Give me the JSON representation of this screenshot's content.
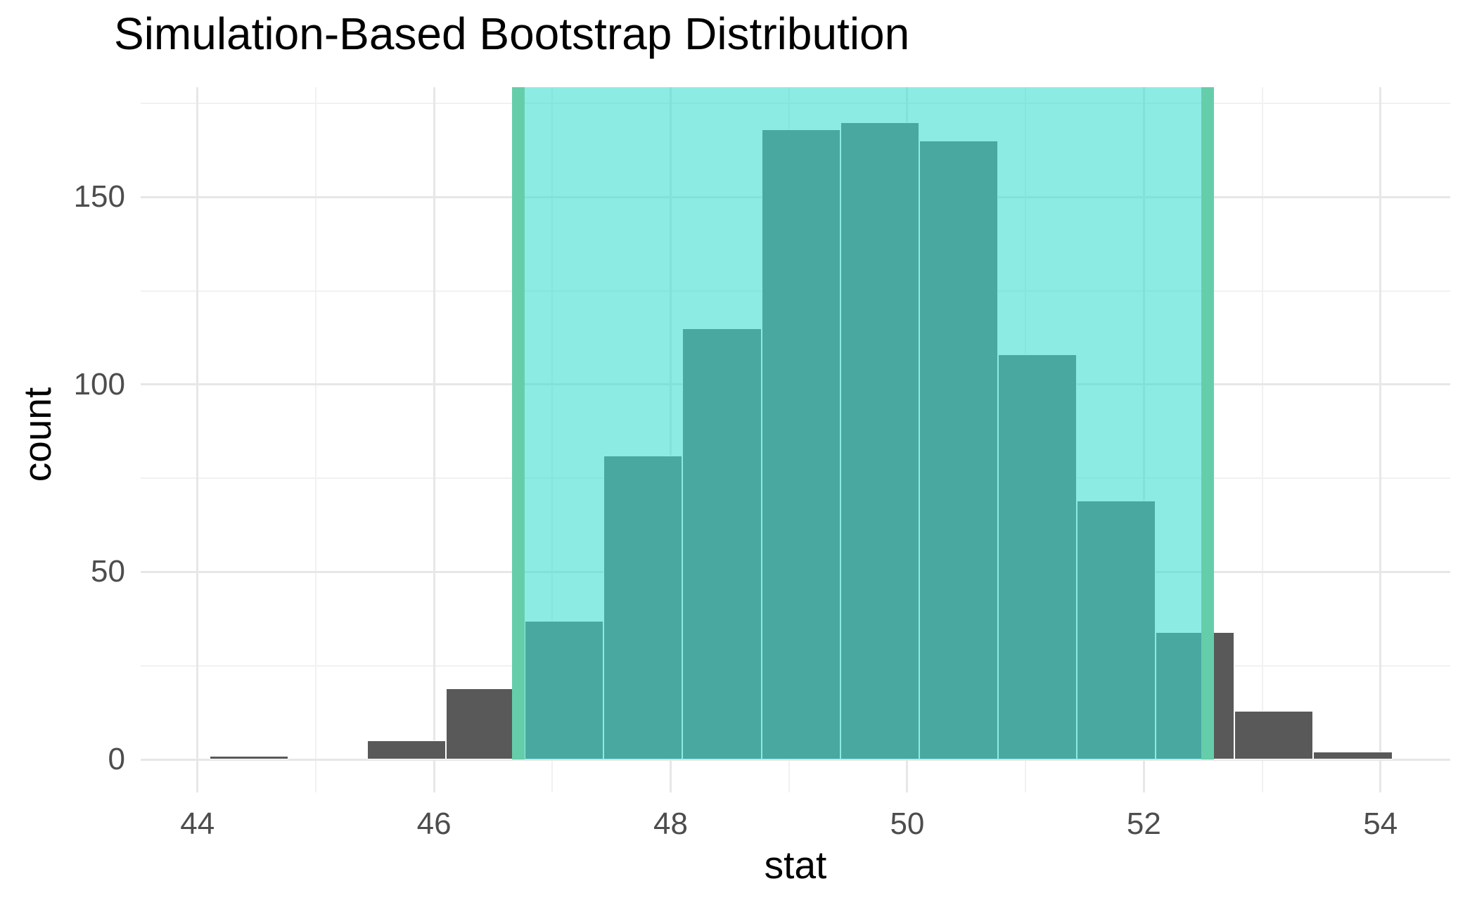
{
  "title": "Simulation-Based Bootstrap Distribution",
  "chart_data": {
    "type": "bar",
    "subtype": "histogram",
    "title": "Simulation-Based Bootstrap Distribution",
    "xlabel": "stat",
    "ylabel": "count",
    "x_ticks": [
      44,
      46,
      48,
      50,
      52,
      54
    ],
    "y_ticks": [
      0,
      50,
      100,
      150
    ],
    "x_minor_gridlines": [
      45,
      47,
      49,
      51,
      53
    ],
    "y_minor_gridlines": [
      25,
      75,
      125,
      175
    ],
    "xlim": [
      43.52,
      54.59
    ],
    "ylim": [
      -8.8,
      179.3
    ],
    "grid": true,
    "legend_position": "none",
    "bin_width": 0.667,
    "bins": [
      {
        "x0": 44.1,
        "x1": 44.767,
        "count": 1
      },
      {
        "x0": 44.767,
        "x1": 45.433,
        "count": 0
      },
      {
        "x0": 45.433,
        "x1": 46.1,
        "count": 5
      },
      {
        "x0": 46.1,
        "x1": 46.767,
        "count": 19
      },
      {
        "x0": 46.767,
        "x1": 47.433,
        "count": 37
      },
      {
        "x0": 47.433,
        "x1": 48.1,
        "count": 81
      },
      {
        "x0": 48.1,
        "x1": 48.767,
        "count": 115
      },
      {
        "x0": 48.767,
        "x1": 49.433,
        "count": 168
      },
      {
        "x0": 49.433,
        "x1": 50.1,
        "count": 170
      },
      {
        "x0": 50.1,
        "x1": 50.767,
        "count": 165
      },
      {
        "x0": 50.767,
        "x1": 51.433,
        "count": 108
      },
      {
        "x0": 51.433,
        "x1": 52.1,
        "count": 69
      },
      {
        "x0": 52.1,
        "x1": 52.767,
        "count": 34
      },
      {
        "x0": 52.767,
        "x1": 53.433,
        "count": 13
      },
      {
        "x0": 53.433,
        "x1": 54.1,
        "count": 2
      }
    ],
    "confidence_interval": {
      "lower": 46.71,
      "upper": 52.54,
      "shaded": true
    },
    "colors": {
      "bar_fill": "#595959",
      "bar_stroke": "#FFFFFF",
      "ci_shade_fill": "#40E0D0",
      "ci_shade_alpha": 0.6,
      "ci_line": "#66CDAA",
      "grid_major": "#E7E7E7",
      "grid_minor": "#F1F1F1",
      "tick_label": "#4D4D4D",
      "text": "#000000",
      "background": "#FFFFFF"
    }
  }
}
